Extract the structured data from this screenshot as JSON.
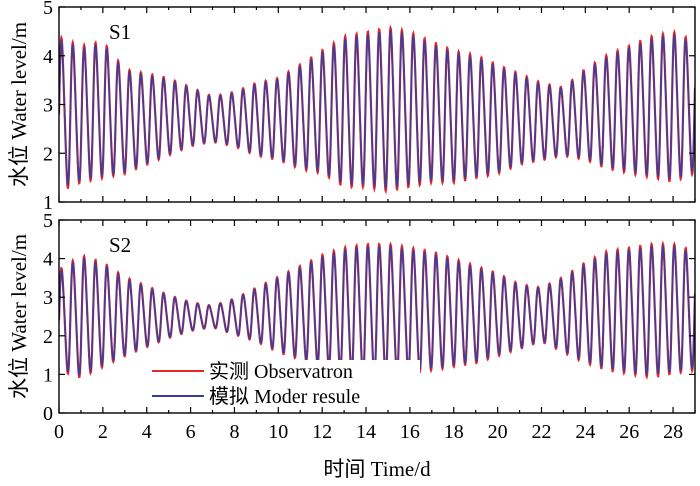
{
  "chart_data": [
    {
      "type": "line",
      "panel_label": "S1",
      "ylabel": "水位 Water level/m",
      "ylim": [
        1,
        5
      ],
      "yticks": [
        "1",
        "2",
        "3",
        "4",
        "5"
      ],
      "xlim": [
        0,
        29
      ],
      "xticks": [
        "0",
        "2",
        "4",
        "6",
        "8",
        "10",
        "12",
        "14",
        "16",
        "18",
        "20",
        "22",
        "24",
        "26",
        "28"
      ],
      "semidiurnal": true,
      "envelope_knots": {
        "t": [
          0,
          1,
          2,
          3,
          5,
          6,
          7,
          8,
          9,
          10,
          11,
          12,
          13,
          14,
          15,
          16,
          17,
          18,
          19,
          20,
          21,
          22,
          23,
          24,
          25,
          26,
          27,
          28,
          29
        ],
        "high": [
          4.5,
          4.3,
          4.4,
          3.8,
          3.6,
          3.4,
          3.2,
          3.3,
          3.5,
          3.6,
          3.9,
          4.2,
          4.5,
          4.6,
          4.7,
          4.6,
          4.4,
          4.2,
          4.1,
          3.9,
          3.7,
          3.5,
          3.4,
          3.8,
          4.1,
          4.3,
          4.5,
          4.6,
          4.4
        ],
        "low": [
          1.1,
          1.3,
          1.4,
          1.5,
          1.9,
          2.1,
          2.2,
          2.1,
          1.9,
          1.8,
          1.6,
          1.5,
          1.2,
          1.2,
          1.1,
          1.2,
          1.3,
          1.3,
          1.4,
          1.5,
          1.7,
          1.8,
          1.9,
          1.8,
          1.6,
          1.5,
          1.4,
          1.3,
          1.5
        ]
      },
      "series": [
        {
          "name": "实测 Observatron",
          "color": "#e8262a"
        },
        {
          "name": "模拟 Moder resule",
          "color": "#3b3f9c"
        }
      ]
    },
    {
      "type": "line",
      "panel_label": "S2",
      "ylabel": "水位 Water level/m",
      "ylim": [
        0,
        5
      ],
      "yticks": [
        "0",
        "1",
        "2",
        "3",
        "4",
        "5"
      ],
      "xlim": [
        0,
        29
      ],
      "xticks": [
        "0",
        "2",
        "4",
        "6",
        "8",
        "10",
        "12",
        "14",
        "16",
        "18",
        "20",
        "22",
        "24",
        "26",
        "28"
      ],
      "xlabel": "时间 Time/d",
      "semidiurnal": true,
      "envelope_knots": {
        "t": [
          0,
          1,
          2,
          3,
          5,
          6,
          7,
          8,
          9,
          10,
          11,
          12,
          13,
          14,
          15,
          16,
          17,
          18,
          19,
          20,
          21,
          22,
          23,
          24,
          25,
          26,
          27,
          28,
          29
        ],
        "high": [
          3.8,
          4.2,
          4.0,
          3.6,
          3.1,
          2.9,
          2.8,
          3.0,
          3.3,
          3.6,
          3.9,
          4.2,
          4.4,
          4.5,
          4.5,
          4.4,
          4.3,
          4.1,
          3.9,
          3.7,
          3.4,
          3.3,
          3.6,
          4.0,
          4.3,
          4.4,
          4.5,
          4.5,
          4.3
        ],
        "low": [
          1.0,
          0.8,
          1.1,
          1.4,
          1.9,
          2.1,
          2.2,
          2.0,
          1.8,
          1.5,
          1.3,
          1.1,
          0.9,
          0.8,
          0.8,
          0.9,
          1.0,
          1.1,
          1.2,
          1.4,
          1.6,
          1.8,
          1.5,
          1.2,
          1.0,
          0.9,
          0.8,
          0.9,
          1.0
        ]
      },
      "legend": {
        "placement": "lower-left"
      },
      "series": [
        {
          "name": "实测 Observatron",
          "color": "#e8262a"
        },
        {
          "name": "模拟 Moder resule",
          "color": "#3b3f9c"
        }
      ]
    }
  ]
}
